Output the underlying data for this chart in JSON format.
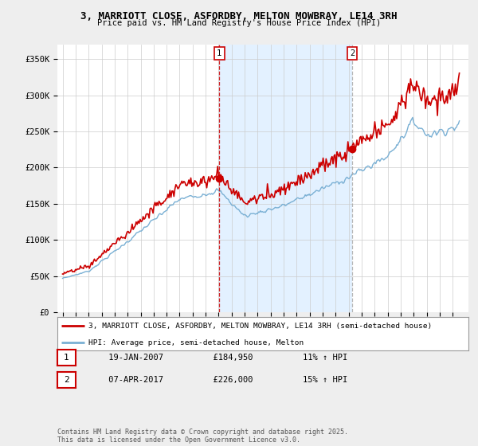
{
  "title_line1": "3, MARRIOTT CLOSE, ASFORDBY, MELTON MOWBRAY, LE14 3RH",
  "title_line2": "Price paid vs. HM Land Registry's House Price Index (HPI)",
  "legend_label1": "3, MARRIOTT CLOSE, ASFORDBY, MELTON MOWBRAY, LE14 3RH (semi-detached house)",
  "legend_label2": "HPI: Average price, semi-detached house, Melton",
  "transaction1_date": "19-JAN-2007",
  "transaction1_price": "£184,950",
  "transaction1_hpi": "11% ↑ HPI",
  "transaction2_date": "07-APR-2017",
  "transaction2_price": "£226,000",
  "transaction2_hpi": "15% ↑ HPI",
  "ylabel_ticks": [
    "£0",
    "£50K",
    "£100K",
    "£150K",
    "£200K",
    "£250K",
    "£300K",
    "£350K"
  ],
  "ytick_values": [
    0,
    50000,
    100000,
    150000,
    200000,
    250000,
    300000,
    350000
  ],
  "ylim": [
    0,
    370000
  ],
  "background_color": "#eeeeee",
  "plot_bg_color": "#ffffff",
  "line_color_property": "#cc0000",
  "line_color_hpi": "#7ab0d4",
  "shade_color": "#ddeeff",
  "vline1_color": "#cc0000",
  "vline2_color": "#aaaaaa",
  "marker1_year": 2007.05,
  "marker2_year": 2017.27,
  "marker1_value": 184950,
  "marker2_value": 226000,
  "vline1_year": 2007.05,
  "vline2_year": 2017.27,
  "footer_text": "Contains HM Land Registry data © Crown copyright and database right 2025.\nThis data is licensed under the Open Government Licence v3.0.",
  "font_color": "#222222"
}
